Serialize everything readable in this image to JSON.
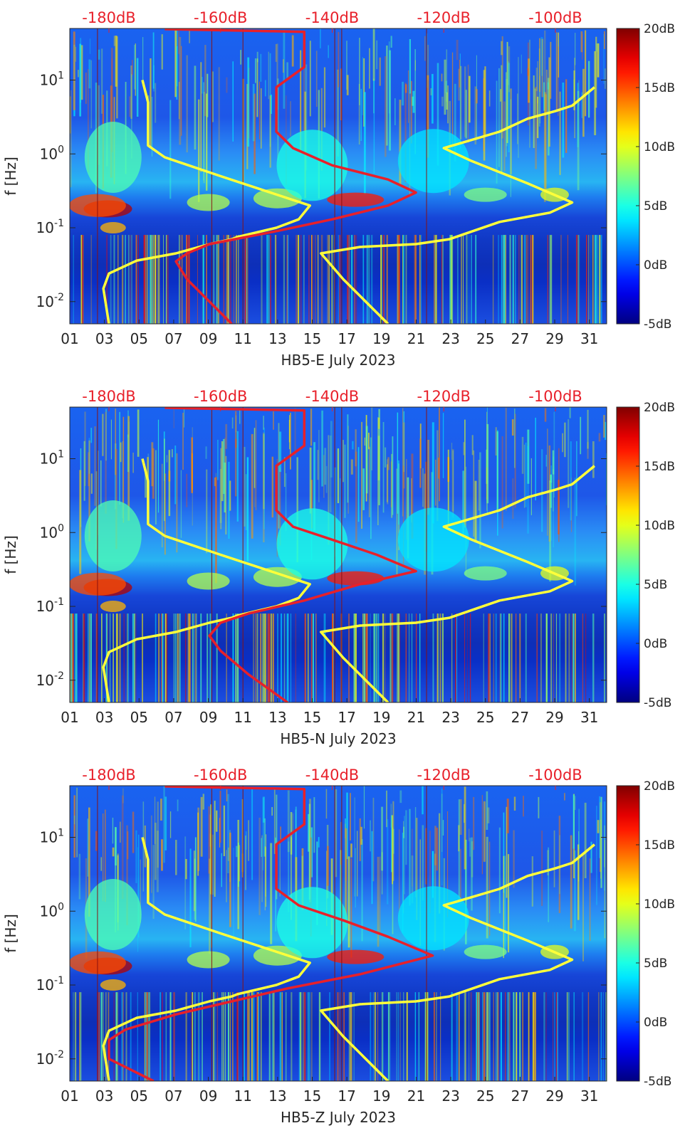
{
  "chart_data": [
    {
      "type": "heatmap",
      "xlabel": "HB5-E July 2023",
      "ylabel": "f [Hz]",
      "x_ticks": [
        "01",
        "03",
        "05",
        "07",
        "09",
        "11",
        "13",
        "15",
        "17",
        "19",
        "21",
        "23",
        "25",
        "27",
        "29",
        "31"
      ],
      "xlim": [
        1,
        32
      ],
      "y_scale": "log",
      "y_ticks": [
        "10^{-2}",
        "10^{-1}",
        "10^{0}",
        "10^{1}"
      ],
      "ylim": [
        0.005,
        50
      ],
      "top_axis_ticks": [
        "-180dB",
        "-160dB",
        "-140dB",
        "-120dB",
        "-100dB"
      ],
      "top_axis_values": [
        -180,
        -160,
        -140,
        -120,
        -100
      ],
      "colorbar": {
        "ticks": [
          "20dB",
          "15dB",
          "10dB",
          "5dB",
          "0dB",
          "-5dB"
        ],
        "values": [
          20,
          15,
          10,
          5,
          0,
          -5
        ],
        "range": [
          -5,
          20
        ],
        "colormap": "jet"
      },
      "series": [
        {
          "color": "#ffff3a",
          "x_unit": "dB",
          "points": [
            [
              -180,
              0.005
            ],
            [
              -181,
              0.015
            ],
            [
              -180,
              0.024
            ],
            [
              -175,
              0.036
            ],
            [
              -168,
              0.045
            ],
            [
              -162,
              0.06
            ],
            [
              -158,
              0.07
            ],
            [
              -157,
              0.075
            ],
            [
              -150,
              0.1
            ],
            [
              -146,
              0.13
            ],
            [
              -144,
              0.2
            ],
            [
              -160,
              0.5
            ],
            [
              -170,
              0.9
            ],
            [
              -173,
              1.3
            ],
            [
              -173,
              2
            ],
            [
              -173,
              5
            ],
            [
              -174,
              10
            ]
          ]
        },
        {
          "color": "#ffff3a",
          "x_unit": "dB",
          "points": [
            [
              -130,
              0.005
            ],
            [
              -138,
              0.02
            ],
            [
              -142,
              0.045
            ],
            [
              -135,
              0.055
            ],
            [
              -125,
              0.06
            ],
            [
              -119,
              0.07
            ],
            [
              -110,
              0.12
            ],
            [
              -101,
              0.16
            ],
            [
              -97,
              0.22
            ],
            [
              -105,
              0.4
            ],
            [
              -115,
              0.8
            ],
            [
              -120,
              1.2
            ],
            [
              -110,
              2
            ],
            [
              -105,
              3
            ],
            [
              -100,
              3.8
            ],
            [
              -97,
              4.5
            ],
            [
              -93,
              8
            ]
          ]
        },
        {
          "color": "#e8202a",
          "x_unit": "dB",
          "points": [
            [
              -158,
              0.005
            ],
            [
              -162,
              0.01
            ],
            [
              -166,
              0.02
            ],
            [
              -168,
              0.035
            ],
            [
              -166,
              0.045
            ],
            [
              -162,
              0.06
            ],
            [
              -150,
              0.09
            ],
            [
              -140,
              0.13
            ],
            [
              -130,
              0.2
            ],
            [
              -125,
              0.3
            ],
            [
              -130,
              0.45
            ],
            [
              -140,
              0.7
            ],
            [
              -147,
              1.2
            ],
            [
              -150,
              2
            ],
            [
              -150,
              3
            ],
            [
              -150,
              5
            ],
            [
              -150,
              8
            ],
            [
              -145,
              15
            ],
            [
              -145,
              25
            ],
            [
              -145,
              45
            ],
            [
              -170,
              49
            ]
          ]
        }
      ]
    },
    {
      "type": "heatmap",
      "xlabel": "HB5-N July 2023",
      "ylabel": "f [Hz]",
      "x_ticks": [
        "01",
        "03",
        "05",
        "07",
        "09",
        "11",
        "13",
        "15",
        "17",
        "19",
        "21",
        "23",
        "25",
        "27",
        "29",
        "31"
      ],
      "xlim": [
        1,
        32
      ],
      "y_scale": "log",
      "y_ticks": [
        "10^{-2}",
        "10^{-1}",
        "10^{0}",
        "10^{1}"
      ],
      "ylim": [
        0.005,
        50
      ],
      "top_axis_ticks": [
        "-180dB",
        "-160dB",
        "-140dB",
        "-120dB",
        "-100dB"
      ],
      "top_axis_values": [
        -180,
        -160,
        -140,
        -120,
        -100
      ],
      "colorbar": {
        "ticks": [
          "20dB",
          "15dB",
          "10dB",
          "5dB",
          "0dB",
          "-5dB"
        ],
        "values": [
          20,
          15,
          10,
          5,
          0,
          -5
        ],
        "range": [
          -5,
          20
        ],
        "colormap": "jet"
      },
      "series": [
        {
          "color": "#ffff3a",
          "x_unit": "dB",
          "points": [
            [
              -180,
              0.005
            ],
            [
              -181,
              0.015
            ],
            [
              -180,
              0.024
            ],
            [
              -175,
              0.036
            ],
            [
              -168,
              0.045
            ],
            [
              -162,
              0.06
            ],
            [
              -158,
              0.07
            ],
            [
              -157,
              0.075
            ],
            [
              -150,
              0.1
            ],
            [
              -146,
              0.13
            ],
            [
              -144,
              0.2
            ],
            [
              -160,
              0.5
            ],
            [
              -170,
              0.9
            ],
            [
              -173,
              1.3
            ],
            [
              -173,
              2
            ],
            [
              -173,
              5
            ],
            [
              -174,
              10
            ]
          ]
        },
        {
          "color": "#ffff3a",
          "x_unit": "dB",
          "points": [
            [
              -130,
              0.005
            ],
            [
              -138,
              0.02
            ],
            [
              -142,
              0.045
            ],
            [
              -135,
              0.055
            ],
            [
              -125,
              0.06
            ],
            [
              -119,
              0.07
            ],
            [
              -110,
              0.12
            ],
            [
              -101,
              0.16
            ],
            [
              -97,
              0.22
            ],
            [
              -105,
              0.4
            ],
            [
              -115,
              0.8
            ],
            [
              -120,
              1.2
            ],
            [
              -110,
              2
            ],
            [
              -105,
              3
            ],
            [
              -100,
              3.8
            ],
            [
              -97,
              4.5
            ],
            [
              -93,
              8
            ]
          ]
        },
        {
          "color": "#e8202a",
          "x_unit": "dB",
          "points": [
            [
              -148,
              0.005
            ],
            [
              -155,
              0.012
            ],
            [
              -160,
              0.025
            ],
            [
              -162,
              0.04
            ],
            [
              -160,
              0.06
            ],
            [
              -155,
              0.08
            ],
            [
              -145,
              0.12
            ],
            [
              -135,
              0.2
            ],
            [
              -125,
              0.3
            ],
            [
              -132,
              0.5
            ],
            [
              -140,
              0.8
            ],
            [
              -147,
              1.2
            ],
            [
              -150,
              2
            ],
            [
              -150,
              3
            ],
            [
              -150,
              5
            ],
            [
              -150,
              8
            ],
            [
              -145,
              15
            ],
            [
              -145,
              25
            ],
            [
              -145,
              45
            ],
            [
              -170,
              49
            ]
          ]
        }
      ]
    },
    {
      "type": "heatmap",
      "xlabel": "HB5-Z July 2023",
      "ylabel": "f [Hz]",
      "x_ticks": [
        "01",
        "03",
        "05",
        "07",
        "09",
        "11",
        "13",
        "15",
        "17",
        "19",
        "21",
        "23",
        "25",
        "27",
        "29",
        "31"
      ],
      "xlim": [
        1,
        32
      ],
      "y_scale": "log",
      "y_ticks": [
        "10^{-2}",
        "10^{-1}",
        "10^{0}",
        "10^{1}"
      ],
      "ylim": [
        0.005,
        50
      ],
      "top_axis_ticks": [
        "-180dB",
        "-160dB",
        "-140dB",
        "-120dB",
        "-100dB"
      ],
      "top_axis_values": [
        -180,
        -160,
        -140,
        -120,
        -100
      ],
      "colorbar": {
        "ticks": [
          "20dB",
          "15dB",
          "10dB",
          "5dB",
          "0dB",
          "-5dB"
        ],
        "values": [
          20,
          15,
          10,
          5,
          0,
          -5
        ],
        "range": [
          -5,
          20
        ],
        "colormap": "jet"
      },
      "series": [
        {
          "color": "#ffff3a",
          "x_unit": "dB",
          "points": [
            [
              -180,
              0.005
            ],
            [
              -181,
              0.015
            ],
            [
              -180,
              0.024
            ],
            [
              -175,
              0.036
            ],
            [
              -168,
              0.045
            ],
            [
              -162,
              0.06
            ],
            [
              -158,
              0.07
            ],
            [
              -157,
              0.075
            ],
            [
              -150,
              0.1
            ],
            [
              -146,
              0.13
            ],
            [
              -144,
              0.2
            ],
            [
              -160,
              0.5
            ],
            [
              -170,
              0.9
            ],
            [
              -173,
              1.3
            ],
            [
              -173,
              2
            ],
            [
              -173,
              5
            ],
            [
              -174,
              10
            ]
          ]
        },
        {
          "color": "#ffff3a",
          "x_unit": "dB",
          "points": [
            [
              -130,
              0.005
            ],
            [
              -138,
              0.02
            ],
            [
              -142,
              0.045
            ],
            [
              -135,
              0.055
            ],
            [
              -125,
              0.06
            ],
            [
              -119,
              0.07
            ],
            [
              -110,
              0.12
            ],
            [
              -101,
              0.16
            ],
            [
              -97,
              0.22
            ],
            [
              -105,
              0.4
            ],
            [
              -115,
              0.8
            ],
            [
              -120,
              1.2
            ],
            [
              -110,
              2
            ],
            [
              -105,
              3
            ],
            [
              -100,
              3.8
            ],
            [
              -97,
              4.5
            ],
            [
              -93,
              8
            ]
          ]
        },
        {
          "color": "#e8202a",
          "x_unit": "dB",
          "points": [
            [
              -172,
              0.005
            ],
            [
              -180,
              0.01
            ],
            [
              -180,
              0.018
            ],
            [
              -177,
              0.025
            ],
            [
              -168,
              0.04
            ],
            [
              -158,
              0.06
            ],
            [
              -148,
              0.09
            ],
            [
              -135,
              0.14
            ],
            [
              -122,
              0.25
            ],
            [
              -130,
              0.45
            ],
            [
              -138,
              0.75
            ],
            [
              -146,
              1.2
            ],
            [
              -150,
              2
            ],
            [
              -150,
              3
            ],
            [
              -150,
              5
            ],
            [
              -150,
              8
            ],
            [
              -145,
              15
            ],
            [
              -145,
              25
            ],
            [
              -145,
              45
            ],
            [
              -170,
              49
            ]
          ]
        }
      ]
    }
  ]
}
